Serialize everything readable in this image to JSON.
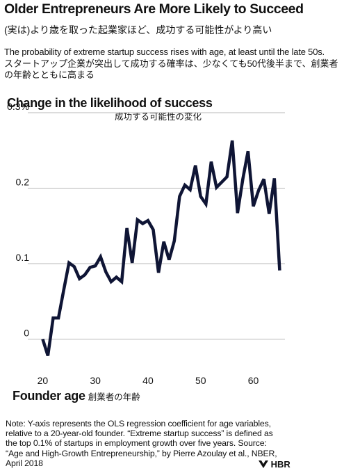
{
  "header": {
    "title": "Older Entrepreneurs Are More Likely to Succeed",
    "title_ja": "(実は)より歳を取った起業家ほど、成功する可能性がより高い",
    "description_en": "The probability of extreme startup success rises with age, at least until the late 50s.",
    "description_ja": "スタートアップ企業が突出して成功する確率は、少なくても50代後半まで、創業者の年齢とともに高まる"
  },
  "footer": {
    "note": "Note: Y-axis represents the OLS regression coefficient for age variables, relative to a 20-year-old founder. “Extreme startup success” is defined as the top 0.1% of startups in employment growth over five years. Source: “Age and High-Growth Entrepreneurship,” by Pierre Azoulay et al., NBER, April 2018",
    "brand": "HBR",
    "brand_icon": "hbr-logo-icon"
  },
  "chart_data": {
    "type": "line",
    "title": "Change in the likelihood of success",
    "subtitle": "成功する可能性の変化",
    "xlabel": "Founder age",
    "xlabel_ja": "創業者の年齢",
    "ylabel": "",
    "xlim": [
      18.5,
      66
    ],
    "ylim": [
      -0.03,
      0.3
    ],
    "x_ticks": [
      20,
      30,
      40,
      50,
      60
    ],
    "x_tick_labels": [
      "20",
      "30",
      "40",
      "50",
      "60"
    ],
    "y_ticks": [
      0,
      0.1,
      0.2,
      0.3
    ],
    "y_tick_labels": [
      "0",
      "0.1",
      "0.2",
      "0.3%"
    ],
    "grid": "horizontal",
    "line_color": "#0f1535",
    "series": [
      {
        "x": [
          20,
          21,
          22,
          23,
          24,
          25,
          26,
          27,
          28,
          29,
          30,
          31,
          32,
          33,
          34,
          35,
          36,
          37,
          38,
          39,
          40,
          41,
          42,
          43,
          44,
          45,
          46,
          47,
          48,
          49,
          50,
          51,
          52,
          53,
          54,
          55,
          56,
          57,
          58,
          59,
          60,
          61,
          62,
          63,
          64,
          65
        ],
        "values": [
          0.0,
          -0.022,
          0.028,
          0.028,
          0.065,
          0.101,
          0.096,
          0.08,
          0.085,
          0.095,
          0.097,
          0.109,
          0.089,
          0.076,
          0.082,
          0.076,
          0.147,
          0.101,
          0.158,
          0.153,
          0.157,
          0.145,
          0.088,
          0.129,
          0.105,
          0.13,
          0.189,
          0.204,
          0.198,
          0.23,
          0.189,
          0.179,
          0.235,
          0.201,
          0.208,
          0.215,
          0.263,
          0.167,
          0.212,
          0.249,
          0.176,
          0.197,
          0.212,
          0.166,
          0.213,
          0.091
        ]
      }
    ]
  }
}
